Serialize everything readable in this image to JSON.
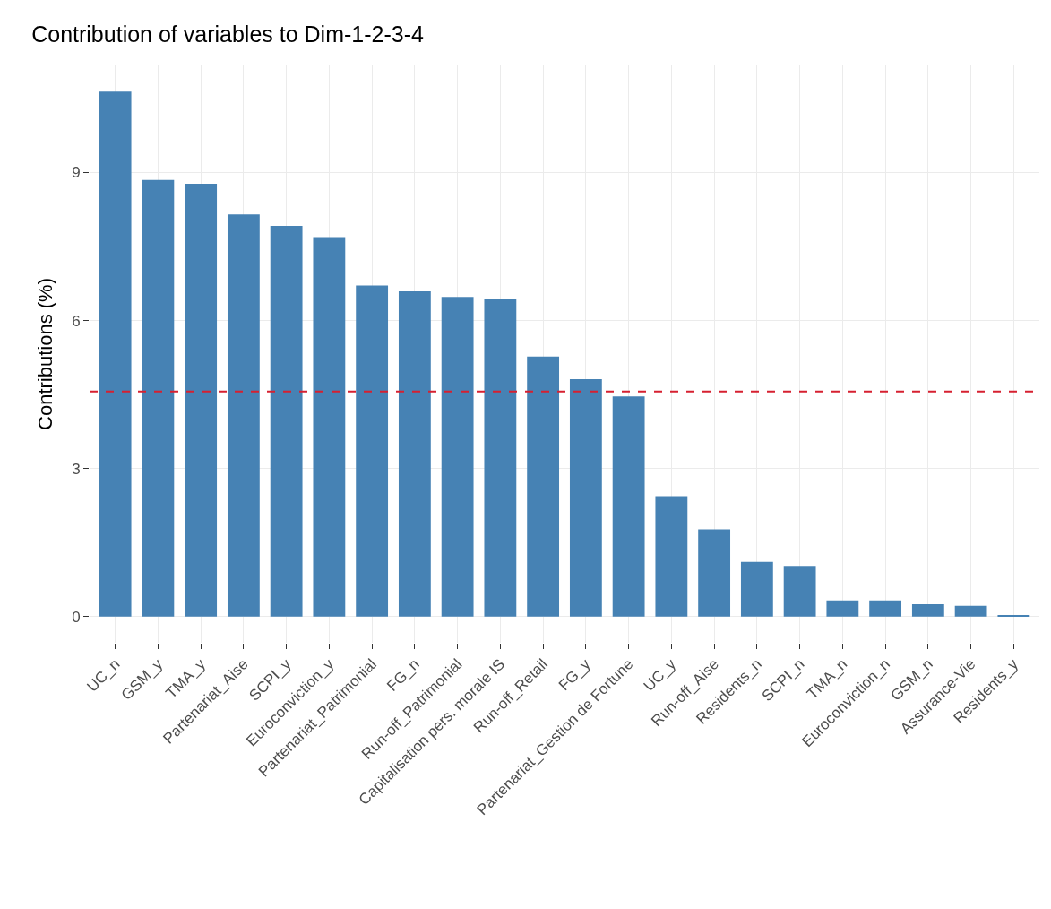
{
  "chart_data": {
    "type": "bar",
    "title": "Contribution of variables to Dim-1-2-3-4",
    "ylabel": "Contributions (%)",
    "categories": [
      "UC_n",
      "GSM_y",
      "TMA_y",
      "Partenariat_Aise",
      "SCPI_y",
      "Euroconviction_y",
      "Partenariat_Patrimonial",
      "FG_n",
      "Run-off_Patrimonial",
      "Capitalisation pers. morale IS",
      "Run-off_Retail",
      "FG_y",
      "Partenariat_Gestion de Fortune",
      "UC_y",
      "Run-off_Aise",
      "Residents_n",
      "SCPI_n",
      "TMA_n",
      "Euroconviction_n",
      "GSM_n",
      "Assurance-Vie",
      "Residents_y"
    ],
    "values": [
      10.64,
      8.85,
      8.77,
      8.15,
      7.92,
      7.69,
      6.71,
      6.59,
      6.48,
      6.44,
      5.27,
      4.81,
      4.46,
      2.44,
      1.77,
      1.11,
      1.03,
      0.33,
      0.33,
      0.25,
      0.22,
      0.02
    ],
    "color": "#4682b4",
    "ylim": [
      -0.53,
      11.17
    ],
    "yticks": [
      0,
      3,
      6,
      9
    ],
    "grid": true,
    "ref_lines": [
      {
        "axis": "y",
        "value": 4.56,
        "color": "#d62030",
        "line_style": "dashed"
      }
    ]
  }
}
